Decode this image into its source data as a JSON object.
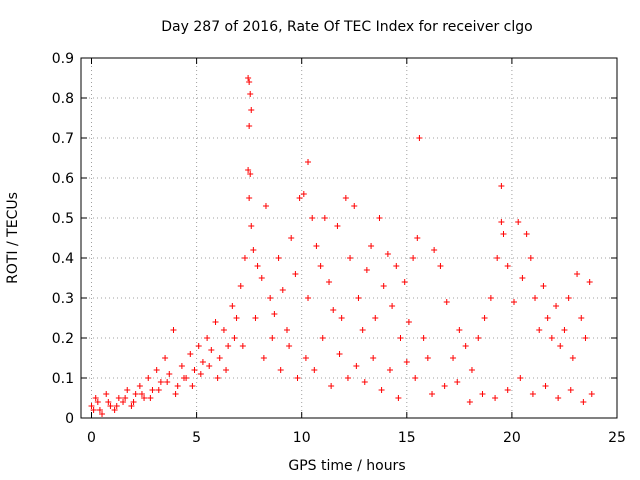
{
  "chart_data": {
    "type": "scatter",
    "title": "Day 287 of 2016, Rate Of TEC Index for receiver clgo",
    "xlabel": "GPS time / hours",
    "ylabel": "ROTI / TECUs",
    "xlim": [
      -0.5,
      25
    ],
    "ylim": [
      0,
      0.9
    ],
    "xticks": [
      0,
      5,
      10,
      15,
      20,
      25
    ],
    "yticks": [
      0,
      0.1,
      0.2,
      0.3,
      0.4,
      0.5,
      0.6,
      0.7,
      0.8,
      0.9
    ],
    "xtick_labels": [
      "0",
      "5",
      "10",
      "15",
      "20",
      "25"
    ],
    "ytick_labels": [
      "0",
      "0.1",
      "0.2",
      "0.3",
      "0.4",
      "0.5",
      "0.6",
      "0.7",
      "0.8",
      "0.9"
    ],
    "grid": true,
    "marker": "plus",
    "series": [
      {
        "name": "ROTI",
        "color": "#ff0000",
        "x": [
          0.0,
          0.1,
          0.2,
          0.3,
          0.5,
          0.7,
          0.9,
          1.1,
          1.3,
          1.5,
          1.7,
          1.9,
          2.1,
          2.3,
          2.5,
          2.7,
          2.9,
          3.1,
          3.3,
          3.5,
          3.7,
          3.9,
          4.1,
          4.3,
          4.5,
          4.7,
          4.9,
          5.1,
          5.3,
          5.5,
          5.7,
          5.9,
          6.1,
          6.3,
          6.5,
          6.7,
          6.9,
          7.1,
          7.3,
          7.45,
          7.5,
          7.55,
          7.6,
          7.5,
          7.45,
          7.55,
          7.5,
          7.6,
          7.7,
          7.9,
          8.1,
          8.3,
          8.5,
          8.7,
          8.9,
          9.1,
          9.3,
          9.5,
          9.7,
          9.9,
          10.1,
          10.3,
          10.5,
          10.3,
          10.7,
          10.9,
          11.1,
          11.3,
          11.5,
          11.7,
          11.9,
          12.1,
          12.3,
          12.5,
          12.7,
          12.9,
          13.1,
          13.3,
          13.5,
          13.7,
          13.9,
          14.1,
          14.3,
          14.5,
          14.7,
          14.9,
          15.1,
          15.3,
          15.6,
          15.5,
          15.8,
          16.0,
          16.3,
          16.6,
          16.9,
          17.2,
          17.5,
          17.8,
          18.1,
          18.4,
          18.7,
          19.0,
          19.3,
          19.5,
          19.6,
          19.5,
          19.8,
          20.1,
          20.3,
          20.5,
          20.7,
          20.9,
          21.1,
          21.3,
          21.5,
          21.7,
          21.9,
          22.1,
          22.3,
          22.5,
          22.7,
          22.9,
          23.1,
          23.3,
          23.5,
          23.7,
          0.4,
          0.8,
          1.2,
          1.6,
          2.0,
          2.4,
          2.8,
          3.2,
          3.6,
          4.0,
          4.4,
          4.8,
          5.2,
          5.6,
          6.0,
          6.4,
          6.8,
          7.2,
          7.8,
          8.2,
          8.6,
          9.0,
          9.4,
          9.8,
          10.2,
          10.6,
          11.0,
          11.4,
          11.8,
          12.2,
          12.6,
          13.0,
          13.4,
          13.8,
          14.2,
          14.6,
          15.0,
          15.4,
          16.2,
          16.8,
          17.4,
          18.0,
          18.6,
          19.2,
          19.8,
          20.4,
          21.0,
          21.6,
          22.2,
          22.8,
          23.4,
          23.8
        ],
        "values": [
          0.03,
          0.02,
          0.05,
          0.04,
          0.01,
          0.06,
          0.03,
          0.02,
          0.05,
          0.04,
          0.07,
          0.03,
          0.06,
          0.08,
          0.05,
          0.1,
          0.07,
          0.12,
          0.09,
          0.15,
          0.11,
          0.22,
          0.08,
          0.13,
          0.1,
          0.16,
          0.12,
          0.18,
          0.14,
          0.2,
          0.17,
          0.24,
          0.15,
          0.22,
          0.18,
          0.28,
          0.25,
          0.33,
          0.4,
          0.85,
          0.84,
          0.81,
          0.77,
          0.73,
          0.62,
          0.61,
          0.55,
          0.48,
          0.42,
          0.38,
          0.35,
          0.53,
          0.3,
          0.26,
          0.4,
          0.32,
          0.22,
          0.45,
          0.36,
          0.55,
          0.56,
          0.64,
          0.5,
          0.3,
          0.43,
          0.38,
          0.5,
          0.34,
          0.27,
          0.48,
          0.25,
          0.55,
          0.4,
          0.53,
          0.3,
          0.22,
          0.37,
          0.43,
          0.25,
          0.5,
          0.33,
          0.41,
          0.28,
          0.38,
          0.2,
          0.34,
          0.24,
          0.4,
          0.7,
          0.45,
          0.2,
          0.15,
          0.42,
          0.38,
          0.29,
          0.15,
          0.22,
          0.18,
          0.12,
          0.2,
          0.25,
          0.3,
          0.4,
          0.58,
          0.46,
          0.49,
          0.38,
          0.29,
          0.49,
          0.35,
          0.46,
          0.4,
          0.3,
          0.22,
          0.33,
          0.25,
          0.2,
          0.28,
          0.18,
          0.22,
          0.3,
          0.15,
          0.36,
          0.25,
          0.2,
          0.34,
          0.02,
          0.04,
          0.03,
          0.05,
          0.04,
          0.06,
          0.05,
          0.07,
          0.09,
          0.06,
          0.1,
          0.08,
          0.11,
          0.13,
          0.1,
          0.12,
          0.2,
          0.18,
          0.25,
          0.15,
          0.2,
          0.12,
          0.18,
          0.1,
          0.15,
          0.12,
          0.2,
          0.08,
          0.16,
          0.1,
          0.13,
          0.09,
          0.15,
          0.07,
          0.12,
          0.05,
          0.14,
          0.1,
          0.06,
          0.08,
          0.09,
          0.04,
          0.06,
          0.05,
          0.07,
          0.1,
          0.06,
          0.08,
          0.05,
          0.07,
          0.04,
          0.06
        ]
      }
    ]
  }
}
